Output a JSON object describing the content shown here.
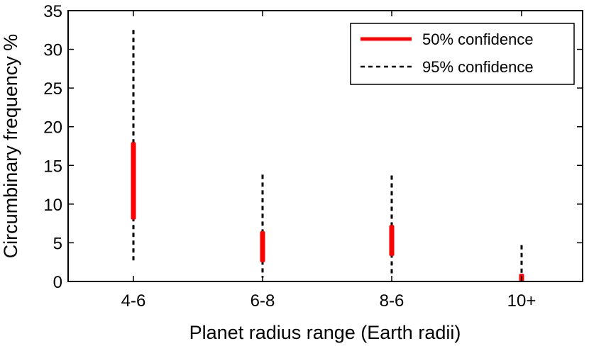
{
  "chart_data": {
    "type": "error-range",
    "xlabel": "Planet radius range (Earth radii)",
    "ylabel": "Circumbinary frequency %",
    "ylim": [
      0,
      35
    ],
    "yticks": [
      0,
      5,
      10,
      15,
      20,
      25,
      30,
      35
    ],
    "categories": [
      "4-6",
      "6-8",
      "8-6",
      "10+"
    ],
    "legend_position": "top-right",
    "grid": false,
    "series": [
      {
        "name": "50% confidence",
        "style": "solid",
        "color": "#ff0000",
        "ranges": [
          [
            8,
            18
          ],
          [
            2.5,
            6.5
          ],
          [
            3.3,
            7.3
          ],
          [
            0,
            1
          ]
        ]
      },
      {
        "name": "95% confidence",
        "style": "dashed",
        "color": "#000000",
        "ranges": [
          [
            2.7,
            32.5
          ],
          [
            0.5,
            13.8
          ],
          [
            0.8,
            13.7
          ],
          [
            0,
            4.7
          ]
        ]
      }
    ]
  }
}
